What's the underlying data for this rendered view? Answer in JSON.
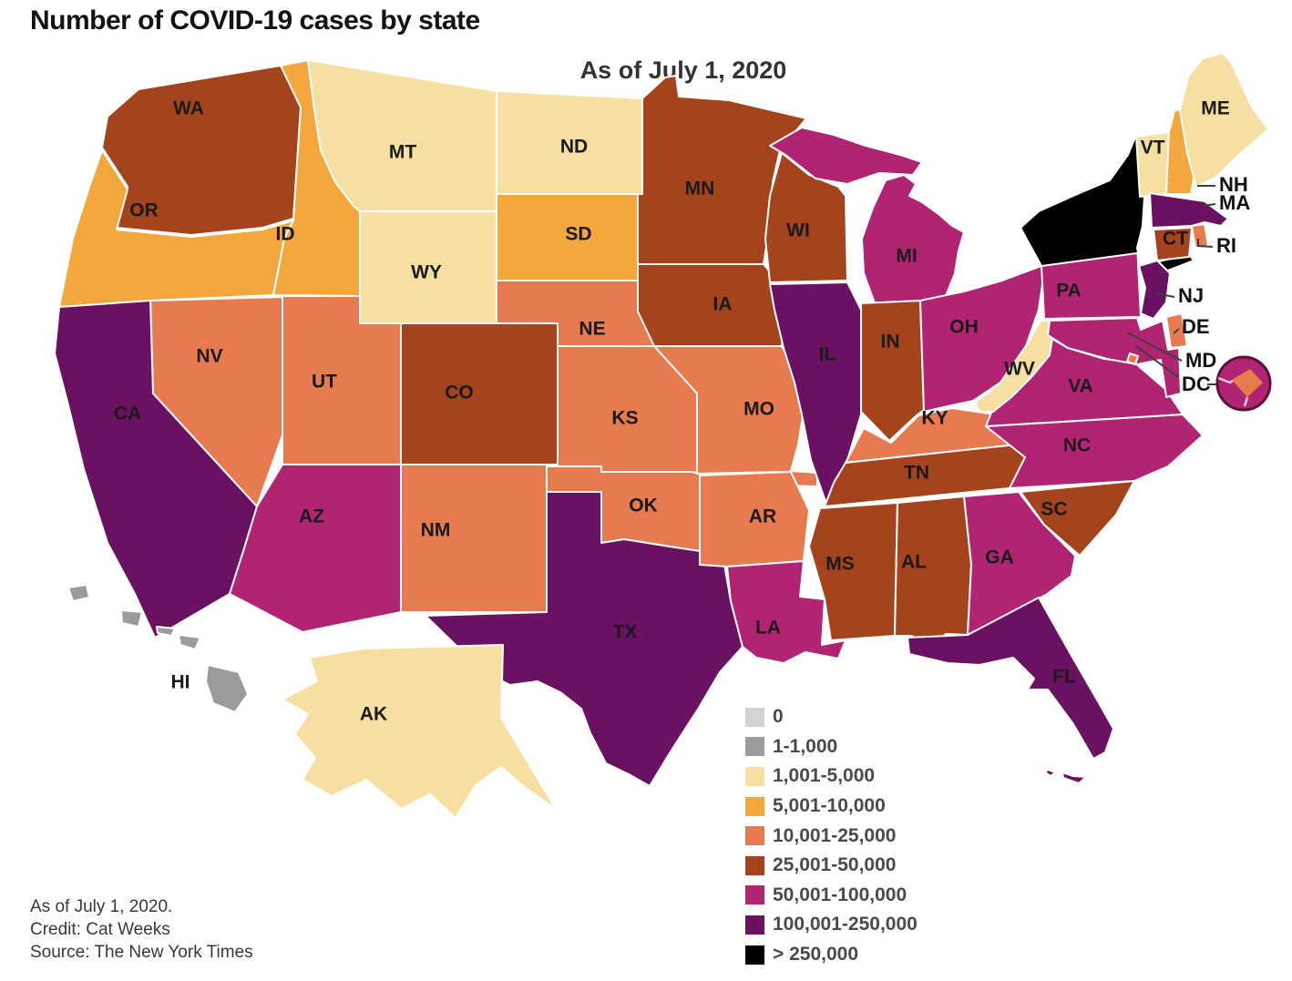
{
  "title": "Number of COVID-19 cases by state",
  "subtitle": "As of July 1, 2020",
  "legend": [
    {
      "label": "0",
      "color": "#d4d4d4"
    },
    {
      "label": "1-1,000",
      "color": "#9b9b9b"
    },
    {
      "label": "1,001-5,000",
      "color": "#f7dfa2"
    },
    {
      "label": "5,001-10,000",
      "color": "#f3a73d"
    },
    {
      "label": "10,001-25,000",
      "color": "#e87a50"
    },
    {
      "label": "25,001-50,000",
      "color": "#a4431c"
    },
    {
      "label": "50,001-100,000",
      "color": "#b02472"
    },
    {
      "label": "100,001-250,000",
      "color": "#6a1161"
    },
    {
      "label": "> 250,000",
      "color": "#000000"
    }
  ],
  "credits": [
    "As of July 1, 2020.",
    "Credit: Cat Weeks",
    "Source: The New York Times"
  ],
  "map": {
    "unlabeled": [
      "NY"
    ],
    "callout_states": [
      "NH",
      "MA",
      "RI",
      "NJ",
      "DE",
      "MD",
      "DC"
    ],
    "states": [
      {
        "code": "WA",
        "range": "25,001-50,000"
      },
      {
        "code": "OR",
        "range": "5,001-10,000"
      },
      {
        "code": "CA",
        "range": "100,001-250,000"
      },
      {
        "code": "NV",
        "range": "10,001-25,000"
      },
      {
        "code": "ID",
        "range": "5,001-10,000"
      },
      {
        "code": "MT",
        "range": "1,001-5,000"
      },
      {
        "code": "WY",
        "range": "1,001-5,000"
      },
      {
        "code": "UT",
        "range": "10,001-25,000"
      },
      {
        "code": "CO",
        "range": "25,001-50,000"
      },
      {
        "code": "AZ",
        "range": "50,001-100,000"
      },
      {
        "code": "NM",
        "range": "10,001-25,000"
      },
      {
        "code": "ND",
        "range": "1,001-5,000"
      },
      {
        "code": "SD",
        "range": "5,001-10,000"
      },
      {
        "code": "NE",
        "range": "10,001-25,000"
      },
      {
        "code": "KS",
        "range": "10,001-25,000"
      },
      {
        "code": "OK",
        "range": "10,001-25,000"
      },
      {
        "code": "TX",
        "range": "100,001-250,000"
      },
      {
        "code": "MN",
        "range": "25,001-50,000"
      },
      {
        "code": "IA",
        "range": "25,001-50,000"
      },
      {
        "code": "MO",
        "range": "10,001-25,000"
      },
      {
        "code": "AR",
        "range": "10,001-25,000"
      },
      {
        "code": "LA",
        "range": "50,001-100,000"
      },
      {
        "code": "WI",
        "range": "25,001-50,000"
      },
      {
        "code": "IL",
        "range": "100,001-250,000"
      },
      {
        "code": "MI",
        "range": "50,001-100,000"
      },
      {
        "code": "IN",
        "range": "25,001-50,000"
      },
      {
        "code": "OH",
        "range": "50,001-100,000"
      },
      {
        "code": "KY",
        "range": "10,001-25,000"
      },
      {
        "code": "TN",
        "range": "25,001-50,000"
      },
      {
        "code": "MS",
        "range": "25,001-50,000"
      },
      {
        "code": "AL",
        "range": "25,001-50,000"
      },
      {
        "code": "GA",
        "range": "50,001-100,000"
      },
      {
        "code": "FL",
        "range": "100,001-250,000"
      },
      {
        "code": "SC",
        "range": "25,001-50,000"
      },
      {
        "code": "NC",
        "range": "50,001-100,000"
      },
      {
        "code": "VA",
        "range": "50,001-100,000"
      },
      {
        "code": "WV",
        "range": "1,001-5,000"
      },
      {
        "code": "PA",
        "range": "50,001-100,000"
      },
      {
        "code": "NY",
        "range": "> 250,000"
      },
      {
        "code": "ME",
        "range": "1,001-5,000"
      },
      {
        "code": "VT",
        "range": "1,001-5,000"
      },
      {
        "code": "NH",
        "range": "5,001-10,000"
      },
      {
        "code": "MA",
        "range": "100,001-250,000"
      },
      {
        "code": "CT",
        "range": "25,001-50,000"
      },
      {
        "code": "RI",
        "range": "10,001-25,000"
      },
      {
        "code": "NJ",
        "range": "100,001-250,000"
      },
      {
        "code": "DE",
        "range": "10,001-25,000"
      },
      {
        "code": "MD",
        "range": "50,001-100,000"
      },
      {
        "code": "DC",
        "range": "10,001-25,000"
      },
      {
        "code": "AK",
        "range": "1,001-5,000"
      },
      {
        "code": "HI",
        "range": "1-1,000"
      }
    ]
  }
}
